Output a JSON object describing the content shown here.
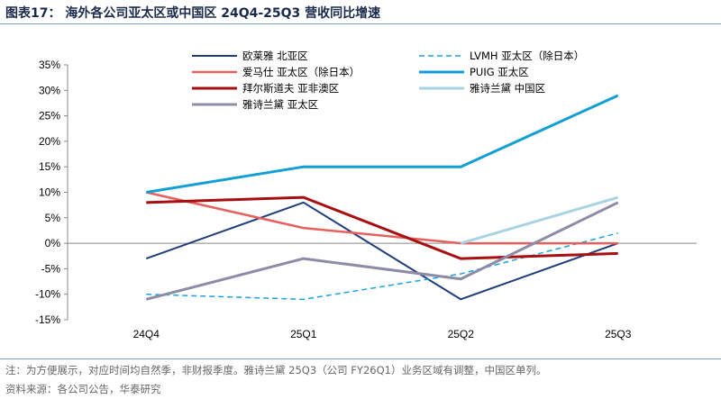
{
  "title": "图表17： 海外各公司亚太区或中国区 24Q4-25Q3 营收同比增速",
  "note": "注：为方便展示，对应时间均自然季，非财报季度。雅诗兰黛 25Q3（公司 FY26Q1）业务区域有调整，中国区单列。",
  "source": "资料来源：各公司公告，华泰研究",
  "chart_data": {
    "type": "line",
    "categories": [
      "24Q4",
      "25Q1",
      "25Q2",
      "25Q3"
    ],
    "ylim": [
      -15,
      35
    ],
    "yticks": [
      -15,
      -10,
      -5,
      0,
      5,
      10,
      15,
      20,
      25,
      30,
      35
    ],
    "ytick_labels": [
      "-15%",
      "-10%",
      "-5%",
      "0%",
      "5%",
      "10%",
      "15%",
      "20%",
      "25%",
      "30%",
      "35%"
    ],
    "unit": "%",
    "legend_placement": "top",
    "series": [
      {
        "name": "欧莱雅 北亚区",
        "color": "#1f3d7a",
        "width": 2,
        "dash": false,
        "values": [
          -3,
          8,
          -11,
          0
        ]
      },
      {
        "name": "LVMH  亚太区（除日本）",
        "color": "#1aa3e0",
        "width": 1.5,
        "dash": true,
        "values": [
          -10,
          -11,
          -6,
          2
        ]
      },
      {
        "name": "爱马仕 亚太区（除日本）",
        "color": "#e8605e",
        "width": 2.5,
        "dash": false,
        "values": [
          10,
          3,
          0,
          0
        ]
      },
      {
        "name": "PUIG 亚太区",
        "color": "#12a0d4",
        "width": 3,
        "dash": false,
        "values": [
          10,
          15,
          15,
          29
        ]
      },
      {
        "name": "拜尔斯道夫 亚非澳区",
        "color": "#a80f10",
        "width": 3,
        "dash": false,
        "values": [
          8,
          9,
          -3,
          -2
        ]
      },
      {
        "name": "雅诗兰黛 中国区",
        "color": "#a9d3e3",
        "width": 3,
        "dash": false,
        "values": [
          null,
          null,
          0,
          9
        ]
      },
      {
        "name": "雅诗兰黛 亚太区",
        "color": "#8c8ca8",
        "width": 3,
        "dash": false,
        "values": [
          -11,
          -3,
          -7,
          8
        ]
      }
    ]
  }
}
